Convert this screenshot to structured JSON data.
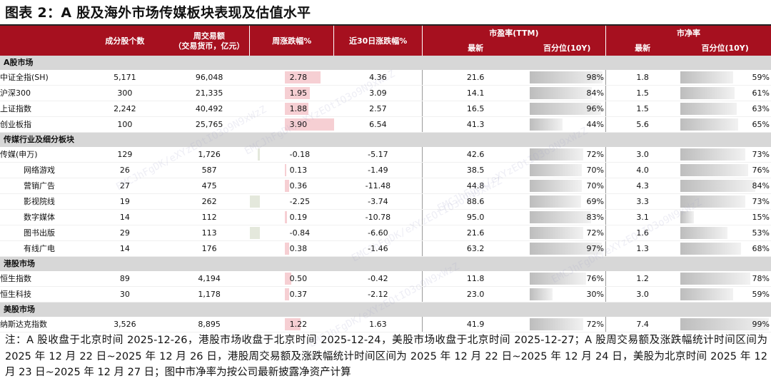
{
  "title": "图表 2：A 股及海外市场传媒板块表现及估值水平",
  "header": {
    "constituents": "成分股个数",
    "weekly_volume": "周交易额",
    "weekly_volume_unit": "（交易货币，亿元）",
    "weekly_change": "周涨跌幅%",
    "d30_change": "近30日涨跌幅%",
    "pe_group": "市盈率(TTM)",
    "pb_group": "市净率",
    "latest": "最新",
    "percentile": "百分位(10Y)"
  },
  "sections": [
    {
      "name": "A股市场",
      "rows": [
        {
          "name": "中证全指(SH)",
          "count": "5,171",
          "volume": "96,048",
          "wk": "2.78",
          "wk_val": 2.78,
          "d30": "4.36",
          "pe": "21.6",
          "pe_pct": "98%",
          "pe_pct_val": 0.98,
          "pb": "1.8",
          "pb_pct": "59%",
          "pb_pct_val": 0.59
        },
        {
          "name": "沪深300",
          "count": "300",
          "volume": "21,335",
          "wk": "1.95",
          "wk_val": 1.95,
          "d30": "3.09",
          "pe": "14.1",
          "pe_pct": "84%",
          "pe_pct_val": 0.84,
          "pb": "1.5",
          "pb_pct": "61%",
          "pb_pct_val": 0.61
        },
        {
          "name": "上证指数",
          "count": "2,242",
          "volume": "40,492",
          "wk": "1.88",
          "wk_val": 1.88,
          "d30": "2.57",
          "pe": "16.5",
          "pe_pct": "96%",
          "pe_pct_val": 0.96,
          "pb": "1.5",
          "pb_pct": "63%",
          "pb_pct_val": 0.63
        },
        {
          "name": "创业板指",
          "count": "100",
          "volume": "25,765",
          "wk": "3.90",
          "wk_val": 3.9,
          "d30": "6.54",
          "pe": "41.3",
          "pe_pct": "44%",
          "pe_pct_val": 0.44,
          "pb": "5.6",
          "pb_pct": "65%",
          "pb_pct_val": 0.65
        }
      ]
    },
    {
      "name": "传媒行业及细分板块",
      "rows": [
        {
          "name": "传媒(申万)",
          "count": "129",
          "volume": "1,726",
          "wk": "-0.18",
          "wk_val": -0.18,
          "d30": "-5.17",
          "pe": "42.6",
          "pe_pct": "72%",
          "pe_pct_val": 0.72,
          "pb": "3.0",
          "pb_pct": "73%",
          "pb_pct_val": 0.73
        },
        {
          "name": "网络游戏",
          "sub": true,
          "count": "26",
          "volume": "587",
          "wk": "0.13",
          "wk_val": 0.13,
          "d30": "-1.49",
          "pe": "38.5",
          "pe_pct": "70%",
          "pe_pct_val": 0.7,
          "pb": "4.0",
          "pb_pct": "76%",
          "pb_pct_val": 0.76
        },
        {
          "name": "营销广告",
          "sub": true,
          "count": "27",
          "volume": "475",
          "wk": "0.36",
          "wk_val": 0.36,
          "d30": "-11.48",
          "pe": "44.8",
          "pe_pct": "70%",
          "pe_pct_val": 0.7,
          "pb": "4.3",
          "pb_pct": "84%",
          "pb_pct_val": 0.84
        },
        {
          "name": "影视院线",
          "sub": true,
          "count": "19",
          "volume": "262",
          "wk": "-2.25",
          "wk_val": -2.25,
          "d30": "-3.74",
          "pe": "88.6",
          "pe_pct": "69%",
          "pe_pct_val": 0.69,
          "pb": "3.3",
          "pb_pct": "73%",
          "pb_pct_val": 0.73
        },
        {
          "name": "数字媒体",
          "sub": true,
          "count": "14",
          "volume": "112",
          "wk": "0.19",
          "wk_val": 0.19,
          "d30": "-10.78",
          "pe": "95.0",
          "pe_pct": "83%",
          "pe_pct_val": 0.83,
          "pb": "3.1",
          "pb_pct": "15%",
          "pb_pct_val": 0.15
        },
        {
          "name": "图书出版",
          "sub": true,
          "count": "29",
          "volume": "113",
          "wk": "-0.84",
          "wk_val": -0.84,
          "d30": "-6.60",
          "pe": "21.6",
          "pe_pct": "72%",
          "pe_pct_val": 0.72,
          "pb": "1.6",
          "pb_pct": "53%",
          "pb_pct_val": 0.53
        },
        {
          "name": "有线广电",
          "sub": true,
          "count": "14",
          "volume": "176",
          "wk": "0.38",
          "wk_val": 0.38,
          "d30": "-1.46",
          "pe": "63.2",
          "pe_pct": "97%",
          "pe_pct_val": 0.97,
          "pb": "1.3",
          "pb_pct": "68%",
          "pb_pct_val": 0.68
        }
      ]
    },
    {
      "name": "港股市场",
      "rows": [
        {
          "name": "恒生指数",
          "count": "89",
          "volume": "4,194",
          "wk": "0.50",
          "wk_val": 0.5,
          "d30": "-0.42",
          "pe": "11.8",
          "pe_pct": "76%",
          "pe_pct_val": 0.76,
          "pb": "1.2",
          "pb_pct": "78%",
          "pb_pct_val": 0.78
        },
        {
          "name": "恒生科技",
          "count": "30",
          "volume": "1,178",
          "wk": "0.37",
          "wk_val": 0.37,
          "d30": "-2.12",
          "pe": "23.0",
          "pe_pct": "30%",
          "pe_pct_val": 0.3,
          "pb": "3.0",
          "pb_pct": "59%",
          "pb_pct_val": 0.59
        }
      ]
    },
    {
      "name": "美股市场",
      "rows": [
        {
          "name": "纳斯达克指数",
          "count": "3,526",
          "volume": "8,895",
          "wk": "1.22",
          "wk_val": 1.22,
          "d30": "1.63",
          "pe": "41.9",
          "pe_pct": "72%",
          "pe_pct_val": 0.72,
          "pb": "7.4",
          "pb_pct": "99%",
          "pb_pct_val": 0.99
        }
      ]
    }
  ],
  "note": "注：A 股收盘于北京时间 2025-12-26，港股市场收盘于北京时间 2025-12-24，美股市场收盘于北京时间 2025-12-27；A 股周交易额及涨跌幅统计时间区间为 2025 年 12 月 22 日~2025 年 12 月 26 日，港股周交易额及涨跌幅统计时间区间为 2025 年 12 月 22 日~2025 年 12 月 24 日，美股为北京时间 2025 年 12 月 23 日~2025 年 12 月 27 日；图中市净率为按公司最新披露净资产计算",
  "colors": {
    "header_bg": "#a6101f",
    "section_bg": "#d7d7d7",
    "pos_bar": "#f6cfd3",
    "neg_bar": "#e4e8dc"
  },
  "watermark": "EMCJhFgDK/eXYzEOtIO3o9N9xWzZ"
}
